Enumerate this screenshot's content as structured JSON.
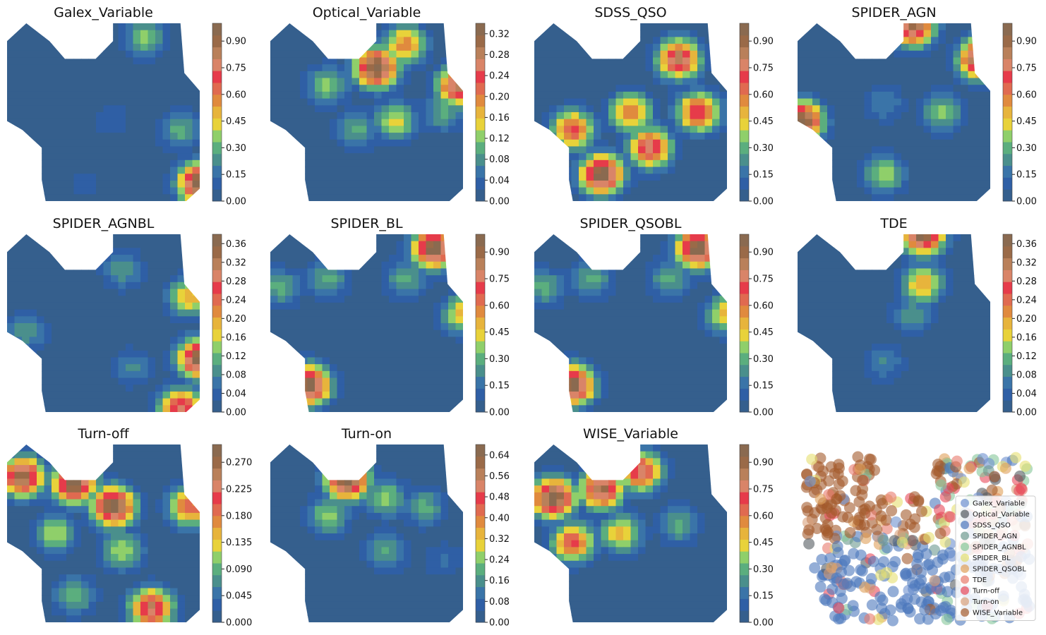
{
  "chart_data": {
    "type": "contourf",
    "description_layout": "3x4 grid of filled contour maps with colorbars; last cell is a scatter of all classes",
    "colorscale": [
      "#355f8d",
      "#2f5fa5",
      "#3a74a8",
      "#4a8f8c",
      "#5bae7e",
      "#8fcf6a",
      "#e8d23a",
      "#e7b43c",
      "#e08a3e",
      "#e06a50",
      "#e63b4a",
      "#d98468",
      "#b9805a",
      "#9a6a48",
      "#8a6a50"
    ],
    "panels": [
      {
        "title": "Galex_Variable",
        "ticks": [
          "0.00",
          "0.15",
          "0.30",
          "0.45",
          "0.60",
          "0.75",
          "0.90"
        ],
        "vmin": 0,
        "vmax": 1.0,
        "hotspots": [
          [
            0.72,
            0.08,
            0.35
          ],
          [
            0.9,
            0.6,
            0.3
          ],
          [
            1.0,
            0.9,
            1.0
          ],
          [
            0.55,
            0.55,
            0.12
          ],
          [
            0.4,
            0.9,
            0.1
          ]
        ]
      },
      {
        "title": "Optical_Variable",
        "ticks": [
          "0.00",
          "0.04",
          "0.08",
          "0.12",
          "0.16",
          "0.20",
          "0.24",
          "0.28",
          "0.32"
        ],
        "vmin": 0,
        "vmax": 0.34,
        "hotspots": [
          [
            0.55,
            0.25,
            0.34
          ],
          [
            0.7,
            0.12,
            0.2
          ],
          [
            0.3,
            0.35,
            0.12
          ],
          [
            0.45,
            0.6,
            0.1
          ],
          [
            0.65,
            0.55,
            0.15
          ],
          [
            0.98,
            0.35,
            0.3
          ],
          [
            0.9,
            0.5,
            0.1
          ]
        ]
      },
      {
        "title": "SDSS_QSO",
        "ticks": [
          "0.00",
          "0.15",
          "0.30",
          "0.45",
          "0.60",
          "0.75",
          "0.90"
        ],
        "vmin": 0,
        "vmax": 1.0,
        "hotspots": [
          [
            0.35,
            0.85,
            1.0
          ],
          [
            0.6,
            0.7,
            0.8
          ],
          [
            0.75,
            0.2,
            0.85
          ],
          [
            0.2,
            0.6,
            0.7
          ],
          [
            0.85,
            0.5,
            0.75
          ],
          [
            0.5,
            0.5,
            0.6
          ]
        ]
      },
      {
        "title": "SPIDER_AGN",
        "ticks": [
          "0.00",
          "0.15",
          "0.30",
          "0.45",
          "0.60",
          "0.75",
          "0.90"
        ],
        "vmin": 0,
        "vmax": 1.0,
        "hotspots": [
          [
            0.95,
            0.2,
            1.0
          ],
          [
            0.6,
            0.02,
            0.9
          ],
          [
            0.02,
            0.55,
            1.0
          ],
          [
            0.75,
            0.5,
            0.35
          ],
          [
            0.45,
            0.85,
            0.4
          ],
          [
            0.45,
            0.45,
            0.2
          ]
        ]
      },
      {
        "title": "SPIDER_AGNBL",
        "ticks": [
          "0.00",
          "0.04",
          "0.08",
          "0.12",
          "0.16",
          "0.20",
          "0.24",
          "0.28",
          "0.32",
          "0.36"
        ],
        "vmin": 0,
        "vmax": 0.38,
        "hotspots": [
          [
            1.0,
            0.7,
            0.38
          ],
          [
            0.95,
            0.35,
            0.2
          ],
          [
            0.9,
            0.98,
            0.3
          ],
          [
            0.1,
            0.55,
            0.1
          ],
          [
            0.65,
            0.75,
            0.08
          ],
          [
            0.6,
            0.2,
            0.1
          ]
        ]
      },
      {
        "title": "SPIDER_BL",
        "ticks": [
          "0.00",
          "0.15",
          "0.30",
          "0.45",
          "0.60",
          "0.75",
          "0.90"
        ],
        "vmin": 0,
        "vmax": 1.0,
        "hotspots": [
          [
            0.85,
            0.08,
            1.0
          ],
          [
            0.2,
            0.85,
            1.0
          ],
          [
            1.0,
            0.45,
            0.5
          ],
          [
            0.3,
            0.25,
            0.3
          ],
          [
            0.7,
            0.25,
            0.3
          ],
          [
            0.05,
            0.3,
            0.3
          ]
        ]
      },
      {
        "title": "SPIDER_QSOBL",
        "ticks": [
          "0.00",
          "0.15",
          "0.30",
          "0.45",
          "0.60",
          "0.75",
          "0.90"
        ],
        "vmin": 0,
        "vmax": 1.0,
        "hotspots": [
          [
            0.85,
            0.08,
            1.0
          ],
          [
            0.2,
            0.85,
            1.0
          ],
          [
            1.0,
            0.45,
            0.5
          ],
          [
            0.3,
            0.25,
            0.3
          ],
          [
            0.7,
            0.25,
            0.3
          ],
          [
            0.05,
            0.3,
            0.3
          ]
        ]
      },
      {
        "title": "TDE",
        "ticks": [
          "0.00",
          "0.04",
          "0.08",
          "0.12",
          "0.16",
          "0.20",
          "0.24",
          "0.28",
          "0.32",
          "0.36"
        ],
        "vmin": 0,
        "vmax": 0.38,
        "hotspots": [
          [
            0.65,
            0.0,
            0.38
          ],
          [
            0.65,
            0.28,
            0.2
          ],
          [
            0.6,
            0.45,
            0.1
          ],
          [
            0.45,
            0.72,
            0.08
          ]
        ]
      },
      {
        "title": "Turn-off",
        "ticks": [
          "0.000",
          "0.045",
          "0.090",
          "0.135",
          "0.180",
          "0.225",
          "0.270"
        ],
        "vmin": 0,
        "vmax": 0.3,
        "hotspots": [
          [
            0.55,
            0.35,
            0.3
          ],
          [
            0.35,
            0.22,
            0.3
          ],
          [
            0.08,
            0.18,
            0.28
          ],
          [
            0.75,
            0.92,
            0.25
          ],
          [
            0.95,
            0.35,
            0.2
          ],
          [
            0.6,
            0.6,
            0.12
          ],
          [
            0.25,
            0.5,
            0.12
          ],
          [
            0.35,
            0.85,
            0.1
          ]
        ]
      },
      {
        "title": "Turn-on",
        "ticks": [
          "0.00",
          "0.08",
          "0.16",
          "0.24",
          "0.32",
          "0.40",
          "0.48",
          "0.56",
          "0.64"
        ],
        "vmin": 0,
        "vmax": 0.68,
        "hotspots": [
          [
            0.4,
            0.2,
            0.68
          ],
          [
            0.3,
            0.4,
            0.25
          ],
          [
            0.6,
            0.3,
            0.25
          ],
          [
            0.6,
            0.6,
            0.2
          ],
          [
            0.9,
            0.65,
            0.1
          ],
          [
            0.8,
            0.35,
            0.2
          ]
        ]
      },
      {
        "title": "WISE_Variable",
        "ticks": [
          "0.00",
          "0.15",
          "0.30",
          "0.45",
          "0.60",
          "0.75",
          "0.90"
        ],
        "vmin": 0,
        "vmax": 1.0,
        "hotspots": [
          [
            0.1,
            0.3,
            1.0
          ],
          [
            0.35,
            0.25,
            0.9
          ],
          [
            0.55,
            0.15,
            0.8
          ],
          [
            0.2,
            0.55,
            0.7
          ],
          [
            0.45,
            0.5,
            0.5
          ],
          [
            0.75,
            0.45,
            0.3
          ]
        ]
      }
    ],
    "scatter": {
      "type": "scatter",
      "legend": [
        {
          "name": "Galex_Variable",
          "color": "#6c8fce"
        },
        {
          "name": "Optical_Variable",
          "color": "#555b60"
        },
        {
          "name": "SDSS_QSO",
          "color": "#4d78bd"
        },
        {
          "name": "SPIDER_AGN",
          "color": "#6d9a90"
        },
        {
          "name": "SPIDER_AGNBL",
          "color": "#86c79a"
        },
        {
          "name": "SPIDER_BL",
          "color": "#e6df70"
        },
        {
          "name": "SPIDER_QSOBL",
          "color": "#e0a05a"
        },
        {
          "name": "TDE",
          "color": "#e87a6c"
        },
        {
          "name": "Turn-off",
          "color": "#e8495a"
        },
        {
          "name": "Turn-on",
          "color": "#d9a07a"
        },
        {
          "name": "WISE_Variable",
          "color": "#a35a2c"
        }
      ]
    }
  }
}
